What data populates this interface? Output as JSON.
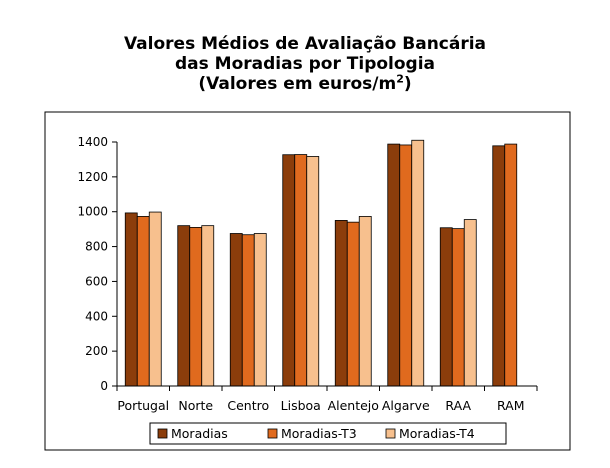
{
  "title": {
    "line1": "Valores Médios de Avaliação Bancária",
    "line2": "das Moradias por Tipologia",
    "line3_prefix": "(Valores em euros/m",
    "line3_sup": "2",
    "line3_suffix": ")"
  },
  "colors": {
    "Moradias": "#8b3d0b",
    "Moradias-T3": "#e06a1e",
    "Moradias-T4": "#f7c08e"
  },
  "chart_data": {
    "type": "bar",
    "title": "Valores Médios de Avaliação Bancária das Moradias por Tipologia (Valores em euros/m2)",
    "categories": [
      "Portugal",
      "Norte",
      "Centro",
      "Lisboa",
      "Alentejo",
      "Algarve",
      "RAA",
      "RAM"
    ],
    "series": [
      {
        "name": "Moradias",
        "values": [
          993,
          920,
          875,
          1327,
          950,
          1388,
          908,
          1378
        ]
      },
      {
        "name": "Moradias-T3",
        "values": [
          973,
          910,
          868,
          1328,
          940,
          1383,
          903,
          1388
        ]
      },
      {
        "name": "Moradias-T4",
        "values": [
          998,
          920,
          875,
          1317,
          973,
          1410,
          955,
          null
        ]
      }
    ],
    "yticks": [
      0,
      200,
      400,
      600,
      800,
      1000,
      1200,
      1400
    ],
    "ylim": [
      0,
      1400
    ],
    "grid": false,
    "legend": "bottom"
  }
}
